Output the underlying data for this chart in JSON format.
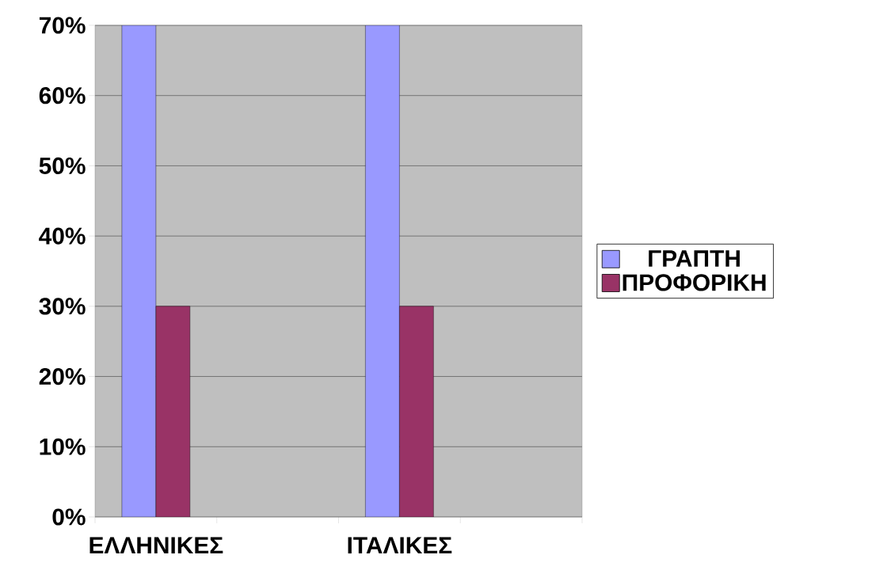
{
  "chart_data": {
    "type": "bar",
    "categories": [
      "ΕΛΛΗΝΙΚΕΣ",
      null,
      "ΙΤΑΛΙΚΕΣ",
      null
    ],
    "series": [
      {
        "name": "ΓΡΑΠΤΗ",
        "color": "#9999ff",
        "values": [
          70,
          null,
          70,
          null
        ]
      },
      {
        "name": "ΠΡΟΦΟΡΙΚΗ",
        "color": "#993366",
        "values": [
          30,
          null,
          30,
          null
        ]
      }
    ],
    "ylim": [
      0,
      70
    ],
    "yticks": [
      {
        "value": 0,
        "label": "0%"
      },
      {
        "value": 10,
        "label": "10%"
      },
      {
        "value": 20,
        "label": "20%"
      },
      {
        "value": 30,
        "label": "30%"
      },
      {
        "value": 40,
        "label": "40%"
      },
      {
        "value": 50,
        "label": "50%"
      },
      {
        "value": 60,
        "label": "60%"
      },
      {
        "value": 70,
        "label": "70%"
      }
    ],
    "grid": "y",
    "legend": "right"
  }
}
